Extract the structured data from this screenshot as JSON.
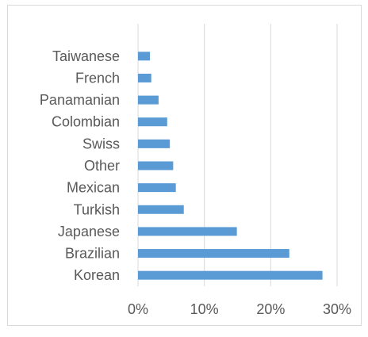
{
  "chart_data": {
    "type": "bar",
    "orientation": "horizontal",
    "categories": [
      "Taiwanese",
      "French",
      "Panamanian",
      "Colombian",
      "Swiss",
      "Other",
      "Mexican",
      "Turkish",
      "Japanese",
      "Brazilian",
      "Korean"
    ],
    "values": [
      1.8,
      2.0,
      3.1,
      4.4,
      4.8,
      5.3,
      5.7,
      6.9,
      14.9,
      22.8,
      27.8
    ],
    "xlim": [
      0,
      30
    ],
    "xticks": [
      0,
      10,
      20,
      30
    ],
    "xtick_labels": [
      "0%",
      "10%",
      "20%",
      "30%"
    ],
    "grid": "vertical",
    "bar_color": "#5b9bd5",
    "gridline_color": "#d9d9d9",
    "title": "",
    "xlabel": "",
    "ylabel": ""
  }
}
